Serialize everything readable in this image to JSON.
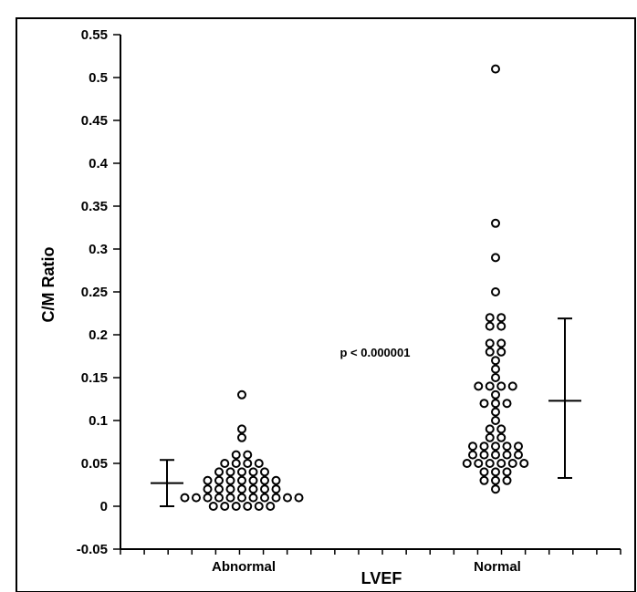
{
  "chart_data": {
    "type": "scatter",
    "xlabel": "LVEF",
    "ylabel": "C/M Ratio",
    "ylim": [
      -0.05,
      0.55
    ],
    "yticks": [
      "-0.05",
      "0",
      "0.05",
      "0.1",
      "0.15",
      "0.2",
      "0.25",
      "0.3",
      "0.35",
      "0.4",
      "0.45",
      "0.5",
      "0.55"
    ],
    "categories": [
      "Abnormal",
      "Normal"
    ],
    "annotation": "p < 0.000001",
    "grid": false,
    "groups": [
      {
        "category": "Abnormal",
        "values": [
          0.13,
          0.09,
          0.08,
          0.06,
          0.06,
          0.05,
          0.05,
          0.05,
          0.05,
          0.04,
          0.04,
          0.04,
          0.04,
          0.04,
          0.03,
          0.03,
          0.03,
          0.03,
          0.03,
          0.03,
          0.03,
          0.02,
          0.02,
          0.02,
          0.02,
          0.02,
          0.02,
          0.02,
          0.01,
          0.01,
          0.01,
          0.01,
          0.01,
          0.01,
          0.01,
          0.01,
          0.01,
          0.01,
          0.01,
          0.0,
          0.0,
          0.0,
          0.0,
          0.0,
          0.0
        ],
        "mean": 0.027,
        "error_low": 0.0,
        "error_high": 0.054
      },
      {
        "category": "Normal",
        "values": [
          0.51,
          0.33,
          0.29,
          0.25,
          0.22,
          0.22,
          0.21,
          0.21,
          0.19,
          0.19,
          0.18,
          0.18,
          0.17,
          0.16,
          0.15,
          0.14,
          0.14,
          0.14,
          0.14,
          0.13,
          0.12,
          0.12,
          0.12,
          0.11,
          0.1,
          0.09,
          0.09,
          0.08,
          0.08,
          0.07,
          0.07,
          0.07,
          0.07,
          0.07,
          0.06,
          0.06,
          0.06,
          0.06,
          0.06,
          0.05,
          0.05,
          0.05,
          0.05,
          0.05,
          0.05,
          0.04,
          0.04,
          0.04,
          0.03,
          0.03,
          0.03,
          0.02
        ],
        "mean": 0.123,
        "error_low": 0.033,
        "error_high": 0.219
      }
    ]
  }
}
